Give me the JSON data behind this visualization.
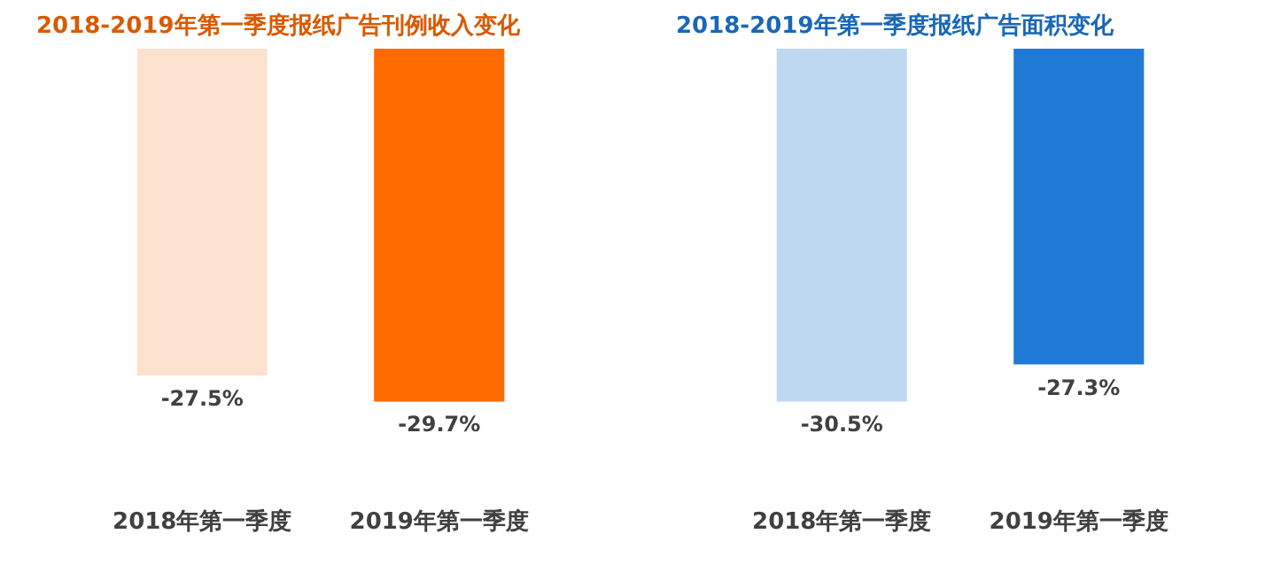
{
  "chart_data": [
    {
      "type": "bar",
      "title": "2018-2019年第一季度报纸广告刊例收入变化",
      "categories": [
        "2018年第一季度",
        "2019年第一季度"
      ],
      "values": [
        -27.5,
        -29.7
      ],
      "value_labels": [
        "-27.5%",
        "-29.7%"
      ],
      "colors": [
        "#fde1cf",
        "#ff6a00"
      ],
      "grid": false,
      "legend": false
    },
    {
      "type": "bar",
      "title": "2018-2019年第一季度报纸广告面积变化",
      "categories": [
        "2018年第一季度",
        "2019年第一季度"
      ],
      "values": [
        -30.5,
        -27.3
      ],
      "value_labels": [
        "-30.5%",
        "-27.3%"
      ],
      "colors": [
        "#bfd8f1",
        "#1f7ad6"
      ],
      "grid": false,
      "legend": false
    }
  ]
}
